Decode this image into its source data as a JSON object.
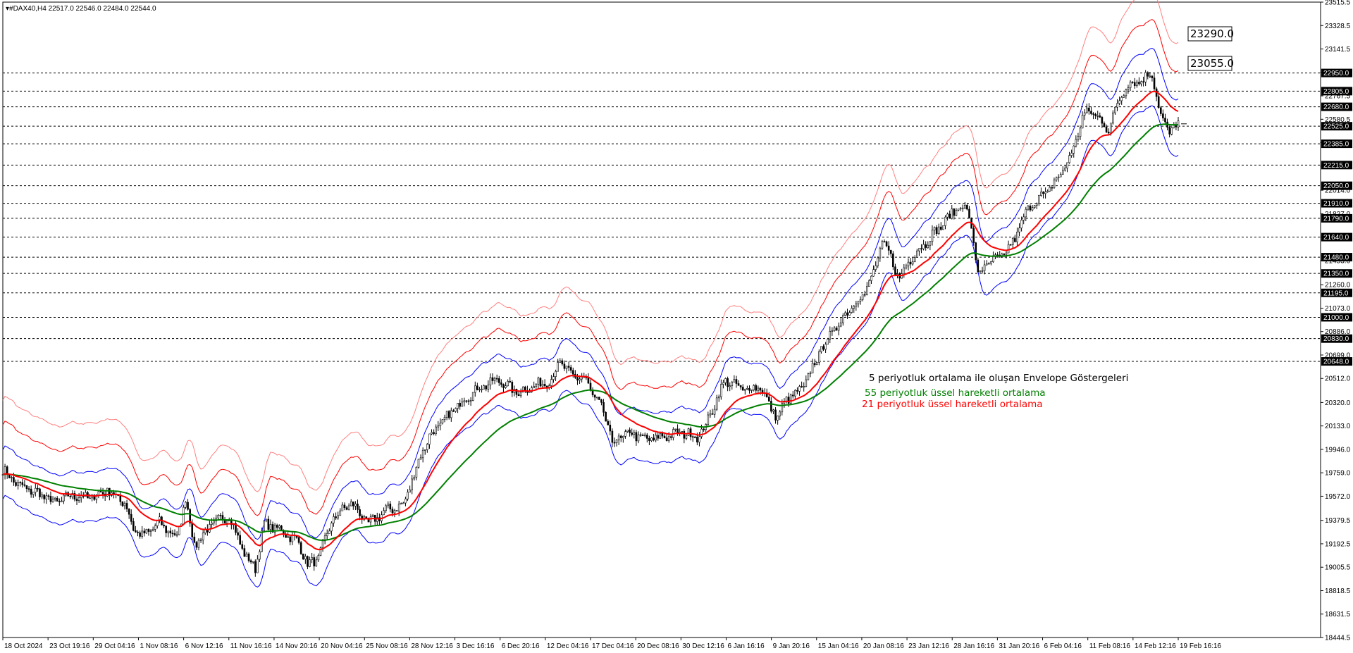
{
  "chart_data": {
    "type": "line",
    "title": "#DAX40,H4",
    "ohlc_header": "22517.0 22546.0 22484.0 22544.0",
    "y_ticks": [
      "23515.5",
      "23328.5",
      "23141.5",
      "22954.5",
      "22767.5",
      "22580.5",
      "22393.5",
      "22206.5",
      "22014.0",
      "21827.0",
      "21640.0",
      "21453.0",
      "21260.0",
      "21073.0",
      "20886.0",
      "20699.0",
      "20512.0",
      "20320.0",
      "20133.0",
      "19946.0",
      "19759.0",
      "19572.0",
      "19379.5",
      "19192.5",
      "19005.5",
      "18818.5",
      "18631.5",
      "18444.5"
    ],
    "ylim": [
      18444.5,
      23515.5
    ],
    "x_ticks": [
      "18 Oct 2024",
      "23 Oct 19:16",
      "29 Oct 04:16",
      "1 Nov 08:16",
      "6 Nov 12:16",
      "11 Nov 16:16",
      "14 Nov 20:16",
      "20 Nov 04:16",
      "25 Nov 08:16",
      "28 Nov 12:16",
      "3 Dec 16:16",
      "6 Dec 20:16",
      "12 Dec 04:16",
      "17 Dec 04:16",
      "20 Dec 08:16",
      "30 Dec 12:16",
      "6 Jan 16:16",
      "9 Jan 20:16",
      "15 Jan 04:16",
      "20 Jan 08:16",
      "23 Jan 12:16",
      "28 Jan 16:16",
      "31 Jan 20:16",
      "6 Feb 04:16",
      "11 Feb 08:16",
      "14 Feb 12:16",
      "19 Feb 16:16"
    ],
    "horizontal_levels": [
      "22950.0",
      "22805.0",
      "22680.0",
      "22525.0",
      "22385.0",
      "22215.0",
      "22050.0",
      "21910.0",
      "21790.0",
      "21640.0",
      "21480.0",
      "21350.0",
      "21195.0",
      "21000.0",
      "20830.0",
      "20648.0"
    ],
    "target_boxes": [
      "23290.0",
      "23055.0"
    ],
    "price_marker": "22544.0",
    "annotations": [
      {
        "text": "5 periyotluk ortalama ile oluşan Envelope Göstergeleri",
        "color": "#000000"
      },
      {
        "text": "55 periyotluk üssel hareketli ortalama",
        "color": "#008000"
      },
      {
        "text": "21 periyotluk üssel hareketli ortalama",
        "color": "#ff0000"
      }
    ],
    "price_keypoints": [
      [
        0,
        19780
      ],
      [
        8,
        19650
      ],
      [
        16,
        19600
      ],
      [
        24,
        19520
      ],
      [
        32,
        19580
      ],
      [
        40,
        19560
      ],
      [
        48,
        19620
      ],
      [
        56,
        19520
      ],
      [
        60,
        19320
      ],
      [
        64,
        19250
      ],
      [
        72,
        19360
      ],
      [
        80,
        19240
      ],
      [
        84,
        19550
      ],
      [
        88,
        19180
      ],
      [
        96,
        19350
      ],
      [
        104,
        19420
      ],
      [
        108,
        19240
      ],
      [
        112,
        19080
      ],
      [
        116,
        19000
      ],
      [
        120,
        19350
      ],
      [
        128,
        19300
      ],
      [
        136,
        19200
      ],
      [
        140,
        19030
      ],
      [
        144,
        19050
      ],
      [
        148,
        19220
      ],
      [
        152,
        19400
      ],
      [
        160,
        19520
      ],
      [
        168,
        19350
      ],
      [
        176,
        19460
      ],
      [
        184,
        19500
      ],
      [
        188,
        19700
      ],
      [
        192,
        19900
      ],
      [
        196,
        20050
      ],
      [
        204,
        20200
      ],
      [
        212,
        20350
      ],
      [
        220,
        20450
      ],
      [
        228,
        20500
      ],
      [
        236,
        20400
      ],
      [
        244,
        20450
      ],
      [
        252,
        20500
      ],
      [
        256,
        20650
      ],
      [
        260,
        20550
      ],
      [
        268,
        20500
      ],
      [
        272,
        20350
      ],
      [
        276,
        20250
      ],
      [
        280,
        20000
      ],
      [
        288,
        20080
      ],
      [
        296,
        20020
      ],
      [
        304,
        20050
      ],
      [
        312,
        20080
      ],
      [
        320,
        20050
      ],
      [
        324,
        20180
      ],
      [
        328,
        20350
      ],
      [
        332,
        20500
      ],
      [
        340,
        20420
      ],
      [
        348,
        20450
      ],
      [
        352,
        20300
      ],
      [
        356,
        20200
      ],
      [
        360,
        20350
      ],
      [
        364,
        20380
      ],
      [
        368,
        20450
      ],
      [
        372,
        20600
      ],
      [
        376,
        20750
      ],
      [
        380,
        20850
      ],
      [
        384,
        20950
      ],
      [
        388,
        21050
      ],
      [
        396,
        21200
      ],
      [
        400,
        21350
      ],
      [
        404,
        21600
      ],
      [
        408,
        21480
      ],
      [
        412,
        21300
      ],
      [
        416,
        21450
      ],
      [
        424,
        21600
      ],
      [
        432,
        21750
      ],
      [
        440,
        21900
      ],
      [
        444,
        21820
      ],
      [
        448,
        21350
      ],
      [
        452,
        21420
      ],
      [
        460,
        21500
      ],
      [
        464,
        21600
      ],
      [
        468,
        21750
      ],
      [
        472,
        21900
      ],
      [
        480,
        22000
      ],
      [
        488,
        22200
      ],
      [
        492,
        22350
      ],
      [
        496,
        22600
      ],
      [
        500,
        22650
      ],
      [
        508,
        22500
      ],
      [
        512,
        22700
      ],
      [
        516,
        22850
      ],
      [
        524,
        22900
      ],
      [
        528,
        22950
      ],
      [
        532,
        22600
      ],
      [
        536,
        22480
      ],
      [
        540,
        22544
      ]
    ]
  }
}
